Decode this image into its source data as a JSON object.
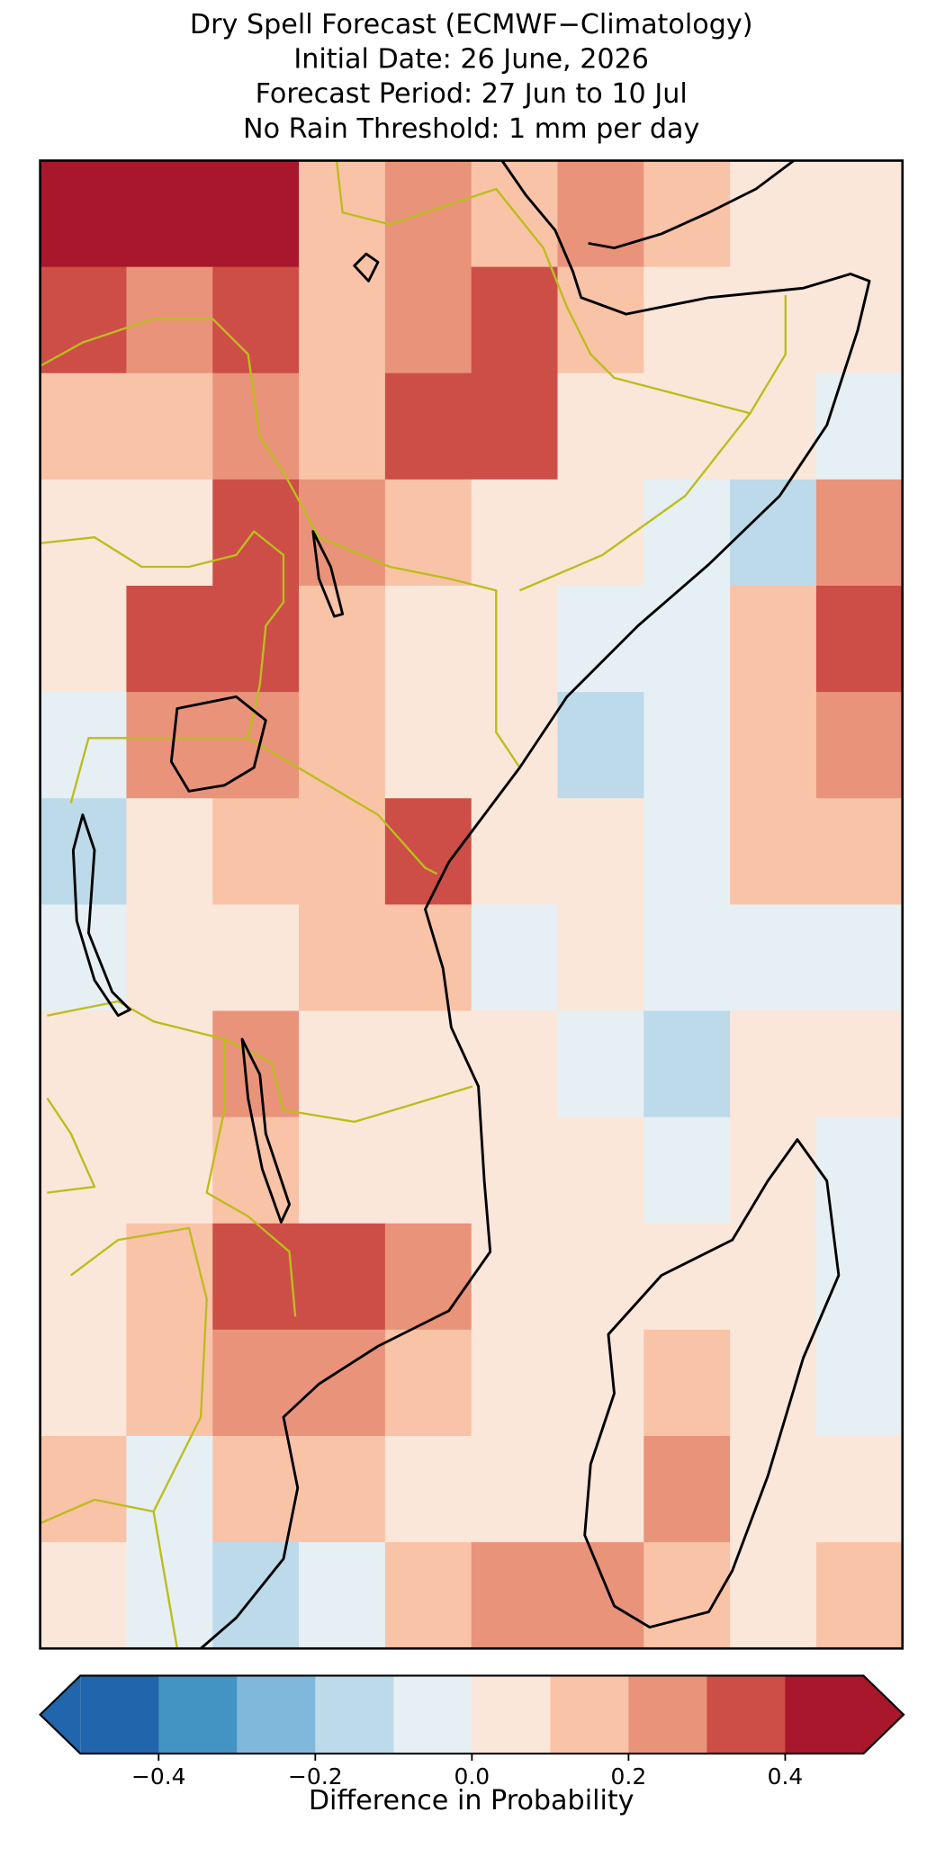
{
  "chart_data": {
    "type": "gridmap",
    "title": [
      "Dry Spell Forecast (ECMWF−Climatology)",
      "Initial Date: 26 June, 2026",
      "Forecast Period: 27 Jun to 10 Jul",
      "No Rain Threshold: 1 mm per day"
    ],
    "colorbar_label": "Difference in Probability",
    "levels": [
      -0.5,
      -0.4,
      -0.3,
      -0.2,
      -0.1,
      0,
      0.1,
      0.2,
      0.3,
      0.4,
      0.5
    ],
    "colors": [
      "#2166ac",
      "#4393c3",
      "#7fb8da",
      "#bcdaea",
      "#e6eff4",
      "#fbe6da",
      "#f9c3a8",
      "#e9937b",
      "#cc4e47",
      "#a8172b"
    ],
    "extend": "both",
    "ticks": [
      {
        "value": -0.4,
        "label": "−0.4"
      },
      {
        "value": -0.2,
        "label": "−0.2"
      },
      {
        "value": 0,
        "label": "0.0"
      },
      0.2,
      0.4
    ],
    "grid": [
      [
        0.45,
        0.45,
        0.4,
        0.15,
        0.2,
        0.1,
        0.2,
        0.15,
        0.05,
        0.05
      ],
      [
        0.3,
        0.2,
        0.3,
        0.1,
        0.25,
        0.3,
        0.1,
        0.05,
        0.05,
        0.05
      ],
      [
        0.1,
        0.1,
        0.2,
        0.1,
        0.35,
        0.35,
        0.05,
        0.05,
        0.0,
        -0.05
      ],
      [
        0.05,
        0.05,
        0.35,
        0.25,
        0.1,
        0.05,
        0.05,
        -0.05,
        -0.15,
        0.25
      ],
      [
        0.05,
        0.3,
        0.35,
        0.15,
        0.05,
        0.05,
        -0.05,
        -0.05,
        0.15,
        0.3
      ],
      [
        -0.05,
        0.2,
        0.2,
        0.1,
        0.05,
        0.05,
        -0.15,
        -0.1,
        0.1,
        0.25
      ],
      [
        -0.2,
        0.05,
        0.1,
        0.1,
        0.3,
        0.0,
        0.05,
        -0.05,
        0.1,
        0.15
      ],
      [
        -0.05,
        0.05,
        0.05,
        0.1,
        0.15,
        -0.05,
        0.0,
        -0.05,
        -0.05,
        -0.05
      ],
      [
        0.0,
        0.05,
        0.2,
        0.05,
        0.05,
        0.05,
        -0.1,
        -0.2,
        0.05,
        0.05
      ],
      [
        0.05,
        0.05,
        0.1,
        0.05,
        0.05,
        0.05,
        0.05,
        -0.05,
        0.0,
        -0.05
      ],
      [
        0.05,
        0.1,
        0.3,
        0.35,
        0.2,
        0.05,
        0.05,
        0.05,
        0.0,
        -0.05
      ],
      [
        0.05,
        0.1,
        0.2,
        0.25,
        0.15,
        0.05,
        0.05,
        0.1,
        0.05,
        -0.05
      ],
      [
        0.1,
        -0.05,
        0.15,
        0.15,
        0.05,
        0.05,
        0.05,
        0.25,
        0.05,
        0.05
      ],
      [
        0.05,
        -0.1,
        -0.2,
        -0.1,
        0.1,
        0.2,
        0.2,
        0.15,
        0.05,
        0.15
      ]
    ]
  }
}
